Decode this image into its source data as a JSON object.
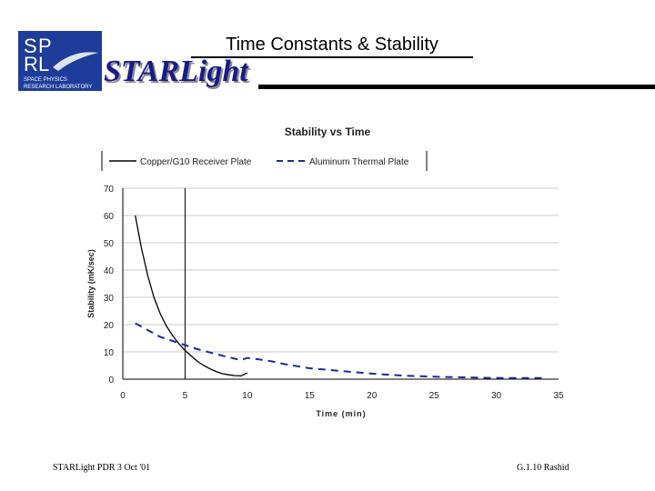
{
  "header": {
    "title": "Time Constants & Stability",
    "brand": "STARLight",
    "logo_letters": [
      "S",
      "P",
      "R",
      "L"
    ],
    "logo_caption": [
      "SPACE PHYSICS",
      "RESEARCH LABORATORY"
    ]
  },
  "footer": {
    "left": "STARLight PDR 3 Oct '01",
    "right": "G.1.10 Rashid"
  },
  "colors": {
    "brand_blue": "#1a1a8a",
    "logo_blue": "#1e3c9a",
    "copper": "#000000",
    "aluminum": "#1f2a9c"
  },
  "chart_data": {
    "type": "line",
    "title": "Stability vs Time",
    "xlabel": "Time (min)",
    "ylabel": "Stability (mK/sec)",
    "xlim": [
      0,
      35
    ],
    "ylim": [
      0,
      70
    ],
    "xticks": [
      "0",
      "5",
      "10",
      "15",
      "20",
      "25",
      "30",
      "35"
    ],
    "yticks": [
      "0",
      "10",
      "20",
      "30",
      "40",
      "50",
      "60",
      "70"
    ],
    "grid": "horizontal",
    "legend_position": "top",
    "reference_line_x": 5,
    "series": [
      {
        "name": "Copper/G10 Receiver Plate",
        "style": "solid",
        "color": "#000000",
        "x": [
          1,
          1.5,
          2,
          2.5,
          3,
          3.5,
          4,
          4.5,
          5,
          5.5,
          6,
          6.5,
          7,
          7.5,
          8,
          8.5,
          9,
          9.5,
          10
        ],
        "y": [
          60,
          48,
          38,
          30,
          24,
          19.5,
          16,
          13,
          10.5,
          8.5,
          6.5,
          5,
          3.8,
          2.8,
          2,
          1.6,
          1.3,
          1.2,
          2.3
        ]
      },
      {
        "name": "Aluminum Thermal Plate",
        "style": "dashed",
        "color": "#1f2a9c",
        "x": [
          1,
          2,
          3,
          4,
          5,
          6,
          7,
          8,
          9,
          9.5,
          10,
          11,
          12,
          13,
          15,
          17,
          19,
          21,
          23,
          25,
          27,
          29,
          31,
          33,
          34
        ],
        "y": [
          20.5,
          18,
          15.5,
          14,
          12.5,
          11,
          9.8,
          8.6,
          7.5,
          7,
          7.8,
          7.2,
          6.5,
          5.5,
          4,
          3.2,
          2.4,
          1.7,
          1.2,
          0.9,
          0.7,
          0.5,
          0.4,
          0.4,
          0.4
        ]
      }
    ]
  }
}
